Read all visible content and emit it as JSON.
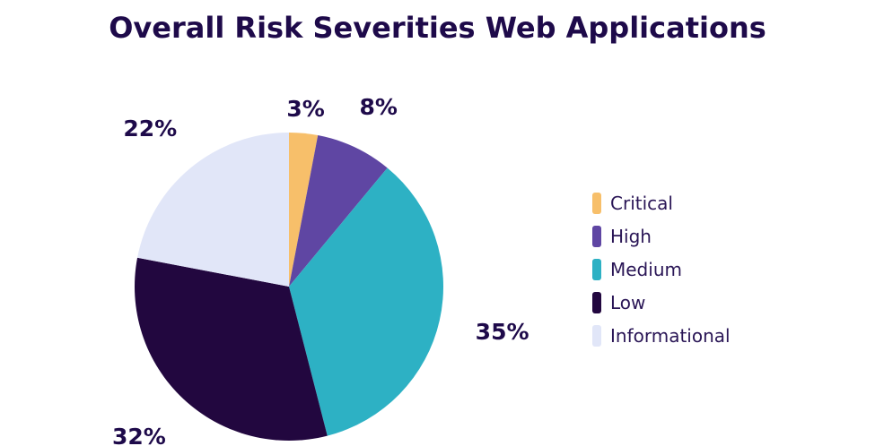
{
  "title": "Overall Risk Severities Web Applications",
  "chart_data": {
    "type": "pie",
    "title": "Overall Risk Severities Web Applications",
    "unit": "%",
    "slices": [
      {
        "label": "Critical",
        "value": 3,
        "display": "3%",
        "color": "#f7bf6a"
      },
      {
        "label": "High",
        "value": 8,
        "display": "8%",
        "color": "#5f46a3"
      },
      {
        "label": "Medium",
        "value": 35,
        "display": "35%",
        "color": "#2db1c4"
      },
      {
        "label": "Low",
        "value": 32,
        "display": "32%",
        "color": "#22073f"
      },
      {
        "label": "Informational",
        "value": 22,
        "display": "22%",
        "color": "#e1e6f8"
      }
    ],
    "start_angle": "12 o'clock",
    "direction": "clockwise",
    "legend_position": "right"
  }
}
